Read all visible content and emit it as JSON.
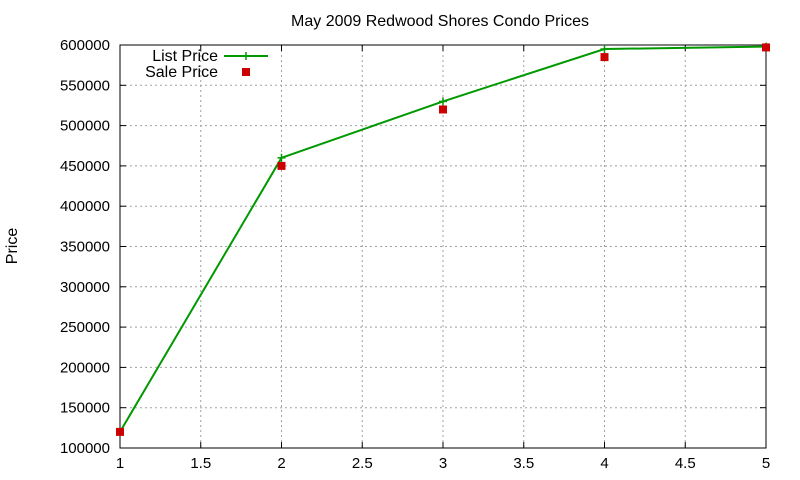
{
  "chart_data": {
    "type": "line",
    "title": "May 2009 Redwood Shores Condo Prices",
    "xlabel": "",
    "ylabel": "Price",
    "x": [
      1,
      2,
      3,
      4,
      5
    ],
    "xlim": [
      1,
      5
    ],
    "ylim": [
      100000,
      600000
    ],
    "xticks": [
      "1",
      "1.5",
      "2",
      "2.5",
      "3",
      "3.5",
      "4",
      "4.5",
      "5"
    ],
    "yticks": [
      "100000",
      "150000",
      "200000",
      "250000",
      "300000",
      "350000",
      "400000",
      "450000",
      "500000",
      "550000",
      "600000"
    ],
    "grid": true,
    "legend_position": "top-left",
    "series": [
      {
        "name": "List Price",
        "style": "lines+points",
        "marker": "plus",
        "color": "#009900",
        "values": [
          120000,
          460000,
          530000,
          595000,
          598000
        ]
      },
      {
        "name": "Sale Price",
        "style": "points",
        "marker": "square",
        "color": "#cc0000",
        "values": [
          120000,
          450000,
          520000,
          585000,
          597000
        ]
      }
    ]
  }
}
